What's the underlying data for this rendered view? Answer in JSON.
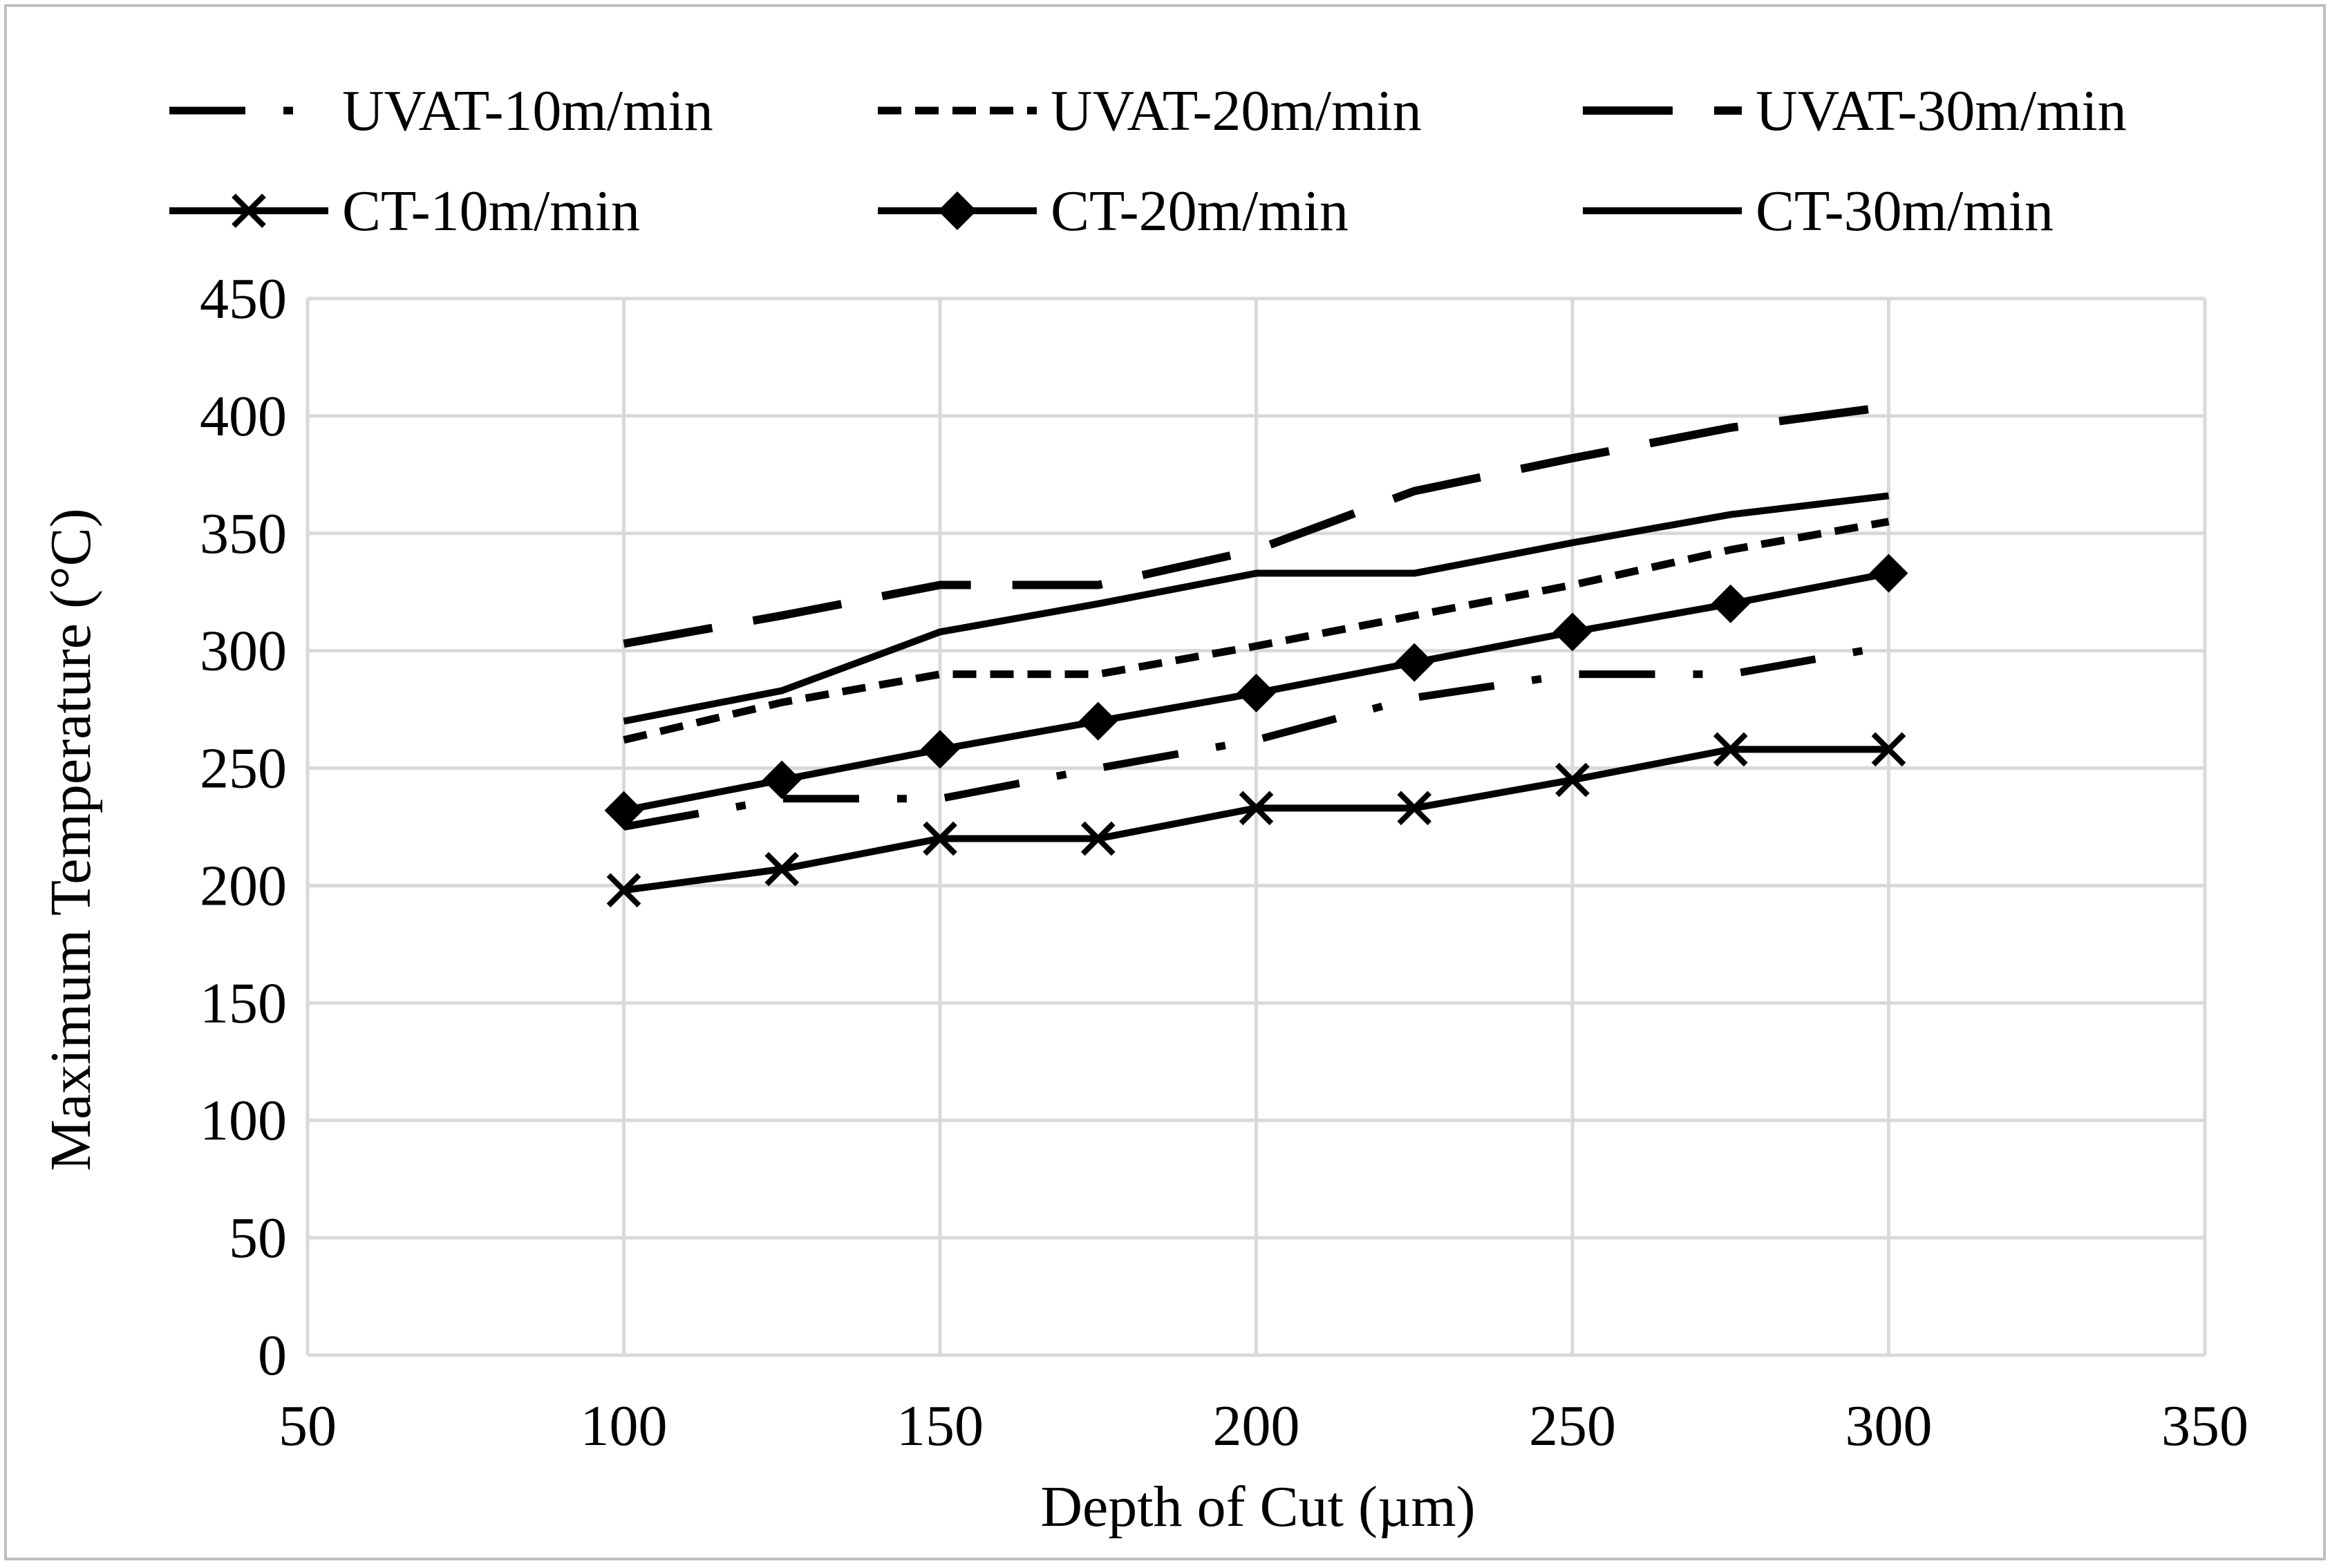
{
  "chart_data": {
    "type": "line",
    "xlabel": "Depth of Cut (µm)",
    "ylabel": "Maximum Temperature (°C)",
    "xlim": [
      50,
      350
    ],
    "ylim": [
      0,
      450
    ],
    "xticks": [
      50,
      100,
      150,
      200,
      250,
      300,
      350
    ],
    "yticks": [
      0,
      50,
      100,
      150,
      200,
      250,
      300,
      350,
      400,
      450
    ],
    "grid": "on",
    "legend_position": "top",
    "x": [
      100,
      125,
      150,
      175,
      200,
      225,
      250,
      275,
      300
    ],
    "series": [
      {
        "name": "UVAT-10m/min",
        "style": "dash-dot",
        "values": [
          225,
          237,
          237,
          250,
          262,
          280,
          290,
          290,
          302
        ]
      },
      {
        "name": "UVAT-20m/min",
        "style": "short-dash",
        "values": [
          262,
          278,
          290,
          290,
          302,
          315,
          328,
          343,
          355
        ]
      },
      {
        "name": "UVAT-30m/min",
        "style": "long-dash",
        "values": [
          303,
          315,
          328,
          328,
          343,
          368,
          382,
          395,
          404
        ]
      },
      {
        "name": "CT-10m/min",
        "style": "solid-x",
        "values": [
          198,
          207,
          220,
          220,
          233,
          233,
          245,
          258,
          258
        ]
      },
      {
        "name": "CT-20m/min",
        "style": "solid-diamond",
        "values": [
          232,
          245,
          258,
          270,
          282,
          295,
          308,
          320,
          333
        ]
      },
      {
        "name": "CT-30m/min",
        "style": "solid",
        "values": [
          270,
          283,
          308,
          320,
          333,
          333,
          346,
          358,
          366
        ]
      }
    ],
    "colors": {
      "line": "#000000",
      "grid": "#d9d9d9",
      "frame": "#bfbfbf"
    }
  }
}
